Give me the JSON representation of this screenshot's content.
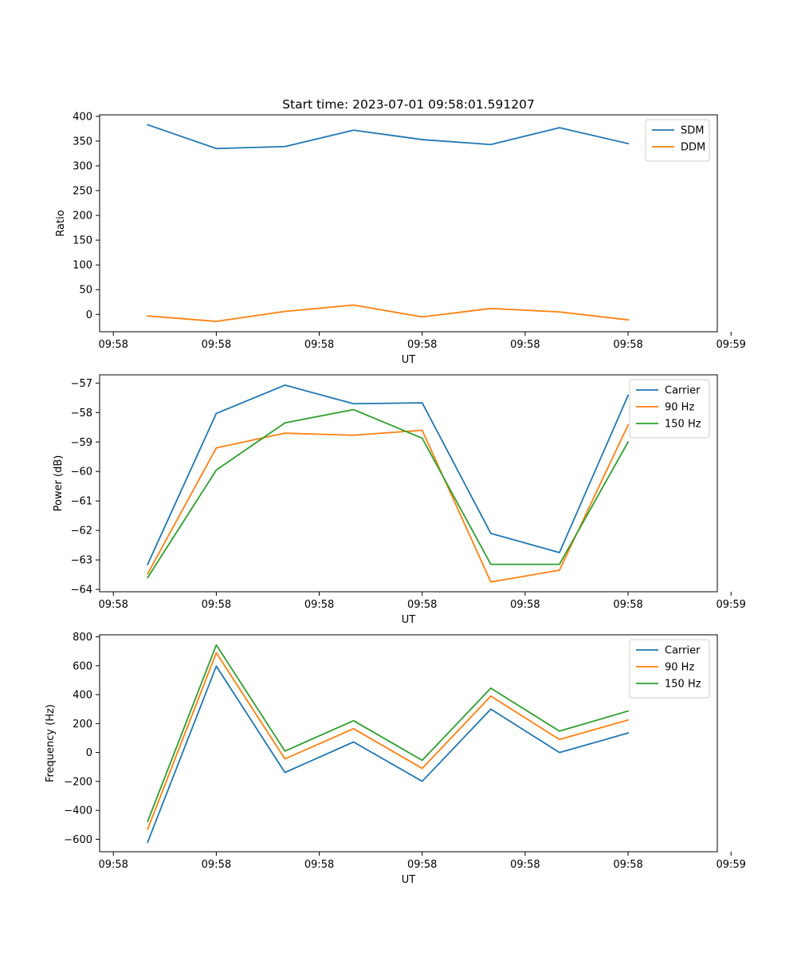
{
  "figure": {
    "title": "Start time: 2023-07-01 09:58:01.591207"
  },
  "colors": {
    "blue": "#1f77b4",
    "orange": "#ff7f0e",
    "green": "#2ca02c"
  },
  "chart_data": [
    {
      "type": "line",
      "title": "Start time: 2023-07-01 09:58:01.591207",
      "xlabel": "UT",
      "ylabel": "Ratio",
      "x": [
        1,
        2,
        3,
        4,
        5,
        6,
        7,
        8
      ],
      "xlim": [
        0.3,
        9.3
      ],
      "x_ticks": [
        0.5,
        2,
        3.5,
        5,
        6.5,
        8,
        9.5
      ],
      "x_tick_labels": [
        "09:58",
        "09:58",
        "09:58",
        "09:58",
        "09:58",
        "09:58",
        "09:59"
      ],
      "ylim": [
        -35,
        403
      ],
      "y_ticks": [
        0,
        50,
        100,
        150,
        200,
        250,
        300,
        350,
        400
      ],
      "y_tick_labels": [
        "0",
        "50",
        "100",
        "150",
        "200",
        "250",
        "300",
        "350",
        "400"
      ],
      "legend_position": "top-right",
      "series": [
        {
          "name": "SDM",
          "color": "#1f77b4",
          "values": [
            383,
            335,
            339,
            372,
            353,
            343,
            377,
            345
          ]
        },
        {
          "name": "DDM",
          "color": "#ff7f0e",
          "values": [
            -3,
            -14,
            6,
            19,
            -5,
            12,
            5,
            -11
          ]
        }
      ]
    },
    {
      "type": "line",
      "title": "",
      "xlabel": "UT",
      "ylabel": "Power (dB)",
      "x": [
        1,
        2,
        3,
        4,
        5,
        6,
        7,
        8
      ],
      "xlim": [
        0.3,
        9.3
      ],
      "x_ticks": [
        0.5,
        2,
        3.5,
        5,
        6.5,
        8,
        9.5
      ],
      "x_tick_labels": [
        "09:58",
        "09:58",
        "09:58",
        "09:58",
        "09:58",
        "09:58",
        "09:59"
      ],
      "ylim": [
        -64.08,
        -56.72
      ],
      "y_ticks": [
        -64,
        -63,
        -62,
        -61,
        -60,
        -59,
        -58,
        -57
      ],
      "y_tick_labels": [
        "−64",
        "−63",
        "−62",
        "−61",
        "−60",
        "−59",
        "−58",
        "−57"
      ],
      "legend_position": "top-right",
      "series": [
        {
          "name": "Carrier",
          "color": "#1f77b4",
          "values": [
            -63.15,
            -58.03,
            -57.07,
            -57.7,
            -57.67,
            -62.1,
            -62.75,
            -57.42
          ]
        },
        {
          "name": "90 Hz",
          "color": "#ff7f0e",
          "values": [
            -63.47,
            -59.2,
            -58.7,
            -58.77,
            -58.6,
            -63.75,
            -63.35,
            -58.42
          ]
        },
        {
          "name": "150 Hz",
          "color": "#2ca02c",
          "values": [
            -63.6,
            -59.95,
            -58.35,
            -57.9,
            -58.87,
            -63.15,
            -63.15,
            -59.0
          ]
        }
      ]
    },
    {
      "type": "line",
      "title": "",
      "xlabel": "UT",
      "ylabel": "Frequency (Hz)",
      "x": [
        1,
        2,
        3,
        4,
        5,
        6,
        7,
        8
      ],
      "xlim": [
        0.3,
        9.3
      ],
      "x_ticks": [
        0.5,
        2,
        3.5,
        5,
        6.5,
        8,
        9.5
      ],
      "x_tick_labels": [
        "09:58",
        "09:58",
        "09:58",
        "09:58",
        "09:58",
        "09:58",
        "09:59"
      ],
      "ylim": [
        -686,
        814
      ],
      "y_ticks": [
        -600,
        -400,
        -200,
        0,
        200,
        400,
        600,
        800
      ],
      "y_tick_labels": [
        "−600",
        "−400",
        "−200",
        "0",
        "200",
        "400",
        "600",
        "800"
      ],
      "legend_position": "top-right",
      "series": [
        {
          "name": "Carrier",
          "color": "#1f77b4",
          "values": [
            -620,
            597,
            -138,
            73,
            -199,
            300,
            0,
            135
          ]
        },
        {
          "name": "90 Hz",
          "color": "#ff7f0e",
          "values": [
            -530,
            690,
            -44,
            165,
            -110,
            390,
            90,
            225
          ]
        },
        {
          "name": "150 Hz",
          "color": "#2ca02c",
          "values": [
            -476,
            744,
            10,
            220,
            -54,
            445,
            148,
            287
          ]
        }
      ]
    }
  ]
}
